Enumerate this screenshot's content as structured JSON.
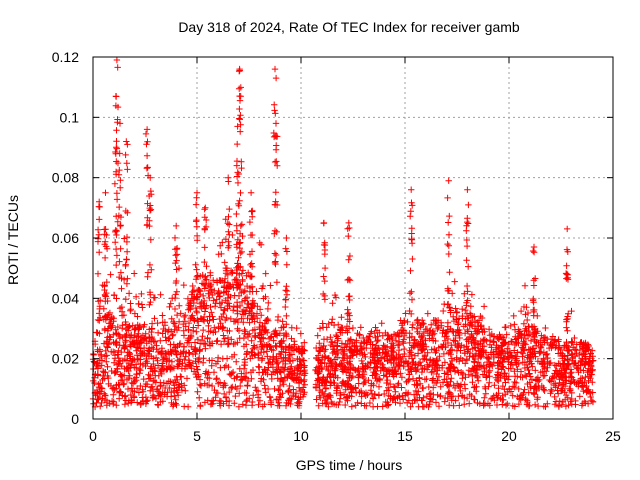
{
  "chart_data": {
    "type": "scatter",
    "title": "Day 318 of 2024, Rate Of TEC Index for receiver gamb",
    "xlabel": "GPS time / hours",
    "ylabel": "ROTI / TECUs",
    "xlim": [
      0,
      25
    ],
    "ylim": [
      0,
      0.12
    ],
    "x_ticks": [
      0,
      5,
      10,
      15,
      20,
      25
    ],
    "x_tick_labels": [
      "0",
      "5",
      "10",
      "15",
      "20",
      "25"
    ],
    "y_ticks": [
      0,
      0.02,
      0.04,
      0.06,
      0.08,
      0.1,
      0.12
    ],
    "y_tick_labels": [
      "0",
      "0.02",
      "0.04",
      "0.06",
      "0.08",
      "0.1",
      "0.12"
    ],
    "grid": true,
    "marker": "+",
    "color": "#ff0000",
    "data_gap": [
      10.2,
      10.7
    ],
    "series": [
      {
        "name": "ROTI",
        "profile": {
          "hours": [
            0,
            0.5,
            1.0,
            1.5,
            2.0,
            2.5,
            3.0,
            3.5,
            4.0,
            4.5,
            5.0,
            5.5,
            6.0,
            6.5,
            7.0,
            7.5,
            8.0,
            8.5,
            9.0,
            9.5,
            10.0,
            10.7,
            11.5,
            12.5,
            13.5,
            14.5,
            15.0,
            15.5,
            16.0,
            16.5,
            17.0,
            17.5,
            18.0,
            18.5,
            19.0,
            19.5,
            20.0,
            20.5,
            21.0,
            21.5,
            22.0,
            22.5,
            23.0,
            23.5,
            24.0
          ],
          "base": [
            0.013,
            0.017,
            0.018,
            0.016,
            0.015,
            0.017,
            0.014,
            0.015,
            0.016,
            0.02,
            0.022,
            0.024,
            0.023,
            0.025,
            0.026,
            0.022,
            0.02,
            0.016,
            0.014,
            0.013,
            0.012,
            0.012,
            0.013,
            0.013,
            0.014,
            0.014,
            0.015,
            0.016,
            0.016,
            0.015,
            0.016,
            0.017,
            0.017,
            0.016,
            0.015,
            0.014,
            0.014,
            0.015,
            0.016,
            0.015,
            0.014,
            0.013,
            0.013,
            0.013,
            0.012
          ],
          "envelope": [
            0.03,
            0.06,
            0.07,
            0.06,
            0.05,
            0.07,
            0.04,
            0.045,
            0.055,
            0.06,
            0.065,
            0.06,
            0.06,
            0.07,
            0.075,
            0.06,
            0.06,
            0.05,
            0.045,
            0.035,
            0.03,
            0.028,
            0.045,
            0.04,
            0.04,
            0.035,
            0.05,
            0.04,
            0.045,
            0.04,
            0.05,
            0.045,
            0.055,
            0.045,
            0.04,
            0.035,
            0.035,
            0.045,
            0.05,
            0.04,
            0.035,
            0.03,
            0.04,
            0.035,
            0.03
          ]
        },
        "spikes": [
          {
            "x": 0.3,
            "y": 0.072
          },
          {
            "x": 0.6,
            "y": 0.075
          },
          {
            "x": 1.15,
            "y": 0.119
          },
          {
            "x": 1.1,
            "y": 0.107
          },
          {
            "x": 1.3,
            "y": 0.098
          },
          {
            "x": 1.6,
            "y": 0.092
          },
          {
            "x": 2.6,
            "y": 0.096
          },
          {
            "x": 2.75,
            "y": 0.08
          },
          {
            "x": 4.0,
            "y": 0.064
          },
          {
            "x": 5.0,
            "y": 0.075
          },
          {
            "x": 5.4,
            "y": 0.07
          },
          {
            "x": 6.5,
            "y": 0.08
          },
          {
            "x": 7.05,
            "y": 0.116
          },
          {
            "x": 7.1,
            "y": 0.107
          },
          {
            "x": 6.95,
            "y": 0.097
          },
          {
            "x": 7.6,
            "y": 0.075
          },
          {
            "x": 8.75,
            "y": 0.116
          },
          {
            "x": 8.8,
            "y": 0.098
          },
          {
            "x": 9.3,
            "y": 0.06
          },
          {
            "x": 11.1,
            "y": 0.065
          },
          {
            "x": 12.3,
            "y": 0.065
          },
          {
            "x": 15.3,
            "y": 0.076
          },
          {
            "x": 17.1,
            "y": 0.079
          },
          {
            "x": 18.0,
            "y": 0.076
          },
          {
            "x": 21.2,
            "y": 0.057
          },
          {
            "x": 22.8,
            "y": 0.063
          }
        ]
      }
    ]
  }
}
